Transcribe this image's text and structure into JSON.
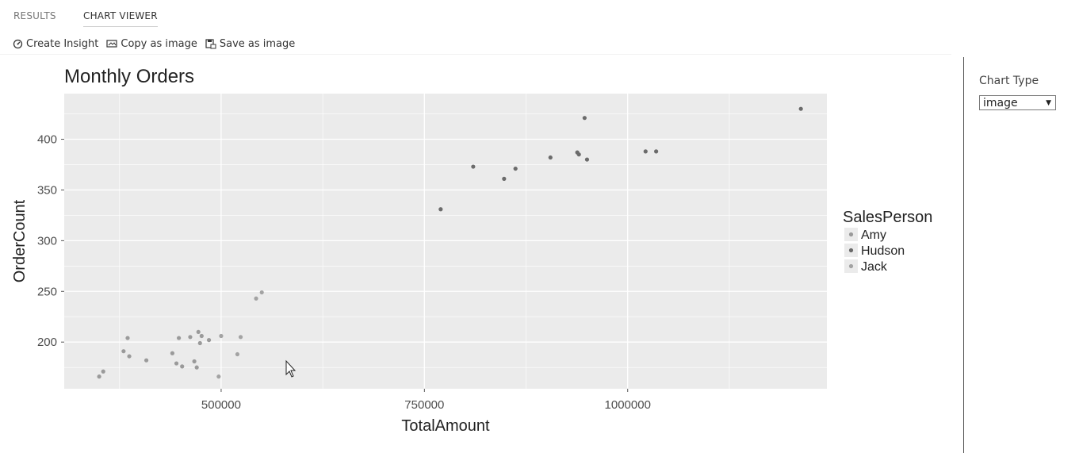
{
  "tabs": {
    "results": "RESULTS",
    "chart_viewer": "CHART VIEWER"
  },
  "toolbar": {
    "create_insight": "Create Insight",
    "copy_as_image": "Copy as image",
    "save_as_image": "Save as image"
  },
  "side_panel": {
    "chart_type_label": "Chart Type",
    "chart_type_value": "image"
  },
  "colors": {
    "panel_bg": "#ebebeb",
    "grid": "#ffffff",
    "amy": "#9a9a9a",
    "hudson": "#6b6b6b",
    "jack": "#a3a3a3"
  },
  "chart_data": {
    "type": "scatter",
    "title": "Monthly Orders",
    "xlabel": "TotalAmount",
    "ylabel": "OrderCount",
    "xlim": [
      307000,
      1245000
    ],
    "ylim": [
      154000,
      445000
    ],
    "x_ticks": [
      500000,
      750000,
      1000000
    ],
    "x_tick_labels": [
      "500000",
      "750000",
      "1000000"
    ],
    "y_ticks": [
      200,
      250,
      300,
      350,
      400
    ],
    "y_tick_labels": [
      "200",
      "250",
      "300",
      "350",
      "400"
    ],
    "grid": true,
    "legend_title": "SalesPerson",
    "legend_position": "right",
    "series": [
      {
        "name": "Amy",
        "points": [
          [
            350000,
            166
          ],
          [
            355000,
            171
          ],
          [
            380000,
            191
          ],
          [
            385000,
            204
          ],
          [
            387000,
            186
          ],
          [
            408000,
            182
          ],
          [
            440000,
            189
          ],
          [
            445000,
            179
          ],
          [
            448000,
            204
          ],
          [
            452000,
            176
          ],
          [
            462000,
            205
          ],
          [
            467000,
            181
          ],
          [
            470000,
            175
          ],
          [
            472000,
            210
          ],
          [
            474000,
            199
          ],
          [
            476000,
            206
          ],
          [
            485000,
            202
          ]
        ]
      },
      {
        "name": "Hudson",
        "points": [
          [
            770000,
            331
          ],
          [
            810000,
            373
          ],
          [
            848000,
            361
          ],
          [
            862000,
            371
          ],
          [
            905000,
            382
          ],
          [
            938000,
            387
          ],
          [
            940000,
            385
          ],
          [
            947000,
            421
          ],
          [
            950000,
            380
          ],
          [
            1022000,
            388
          ],
          [
            1035000,
            388
          ],
          [
            1213000,
            430
          ]
        ]
      },
      {
        "name": "Jack",
        "points": [
          [
            497000,
            166
          ],
          [
            500000,
            206
          ],
          [
            520000,
            188
          ],
          [
            524000,
            205
          ],
          [
            543000,
            243
          ],
          [
            550000,
            249
          ]
        ]
      }
    ]
  }
}
